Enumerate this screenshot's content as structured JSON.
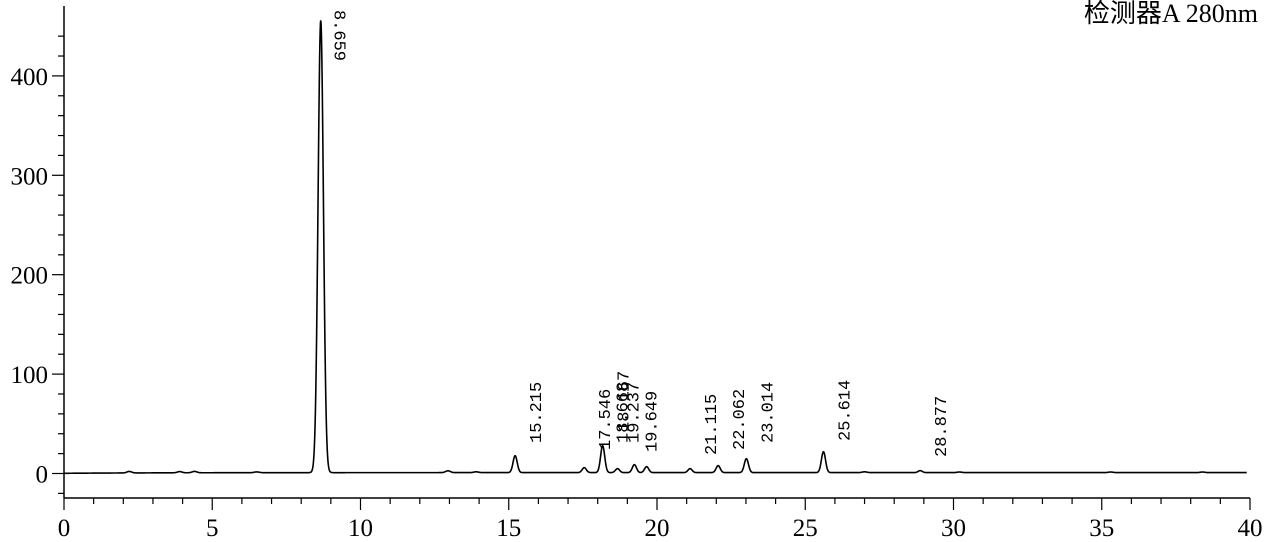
{
  "chart_data": {
    "type": "line",
    "title": "",
    "detector_label": "检测器A 280nm",
    "xlabel": "",
    "ylabel": "",
    "xlim": [
      0,
      40
    ],
    "ylim": [
      -25,
      460
    ],
    "x_ticks": [
      0,
      5,
      10,
      15,
      20,
      25,
      30,
      35,
      40
    ],
    "x_tick_labels": [
      "0",
      "5",
      "10",
      "15",
      "20",
      "25",
      "30",
      "35",
      "40"
    ],
    "y_ticks": [
      0,
      100,
      200,
      300,
      400
    ],
    "y_tick_labels": [
      "0",
      "100",
      "200",
      "300",
      "400"
    ],
    "grid": false,
    "peaks": [
      {
        "label": "8.659",
        "x": 8.659,
        "y": 455
      },
      {
        "label": "15.215",
        "x": 15.215,
        "y": 17
      },
      {
        "label": "17.546",
        "x": 17.546,
        "y": 5
      },
      {
        "label": "18.167",
        "x": 18.167,
        "y": 27
      },
      {
        "label": "18.668",
        "x": 18.668,
        "y": 4
      },
      {
        "label": "19.237",
        "x": 19.237,
        "y": 8
      },
      {
        "label": "19.649",
        "x": 19.649,
        "y": 6
      },
      {
        "label": "21.115",
        "x": 21.115,
        "y": 4
      },
      {
        "label": "22.062",
        "x": 22.062,
        "y": 7
      },
      {
        "label": "23.014",
        "x": 23.014,
        "y": 14
      },
      {
        "label": "25.614",
        "x": 25.614,
        "y": 21
      },
      {
        "label": "28.877",
        "x": 28.877,
        "y": 2
      }
    ]
  }
}
